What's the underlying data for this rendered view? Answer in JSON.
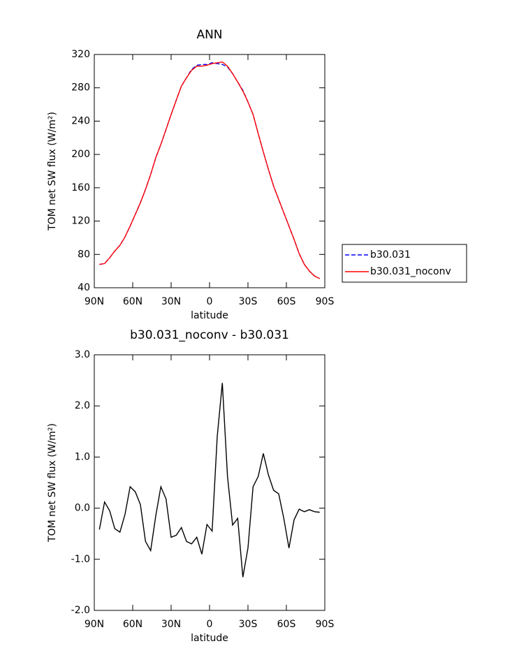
{
  "chart_data": [
    {
      "type": "line",
      "title": "ANN",
      "xlabel": "latitude",
      "ylabel": "TOM net SW flux (W/m²)",
      "x": [
        86,
        82,
        78,
        74,
        70,
        66,
        62,
        58,
        54,
        50,
        46,
        42,
        38,
        34,
        30,
        26,
        22,
        18,
        14,
        10,
        6,
        2,
        -2,
        -6,
        -10,
        -14,
        -18,
        -22,
        -26,
        -30,
        -34,
        -38,
        -42,
        -46,
        -50,
        -54,
        -58,
        -62,
        -66,
        -70,
        -74,
        -78,
        -82,
        -86
      ],
      "series": [
        {
          "name": "b30.031",
          "color": "#0000ff",
          "dash": true,
          "values": [
            68,
            69,
            76,
            84,
            91,
            101,
            114,
            128,
            142,
            158,
            176,
            196,
            212,
            230,
            248,
            265,
            282,
            292,
            302,
            307,
            308,
            308,
            310,
            309,
            308,
            305,
            297,
            287,
            277,
            263,
            248,
            225,
            203,
            182,
            162,
            146,
            130,
            114,
            98,
            81,
            68,
            60,
            54,
            51
          ]
        },
        {
          "name": "b30.031_noconv",
          "color": "#ff0000",
          "dash": false,
          "values": [
            68,
            69,
            76,
            84,
            91,
            101,
            114,
            128,
            142,
            158,
            176,
            196,
            212,
            230,
            248,
            265,
            282,
            292,
            301,
            306,
            306,
            307,
            309,
            310,
            311,
            306,
            297,
            287,
            276,
            263,
            248,
            225,
            203,
            182,
            162,
            146,
            130,
            114,
            98,
            81,
            68,
            60,
            54,
            51
          ]
        }
      ],
      "xlim": [
        90,
        -90
      ],
      "xticks": [
        {
          "value": 90,
          "label": "90N"
        },
        {
          "value": 60,
          "label": "60N"
        },
        {
          "value": 30,
          "label": "30N"
        },
        0,
        {
          "value": -30,
          "label": "30S"
        },
        {
          "value": -60,
          "label": "60S"
        },
        {
          "value": -90,
          "label": "90S"
        }
      ],
      "ylim": [
        40,
        320
      ],
      "yticks": [
        40,
        80,
        120,
        160,
        200,
        240,
        280,
        320
      ],
      "legend": "outside-right"
    },
    {
      "type": "line",
      "title": "b30.031_noconv - b30.031",
      "xlabel": "latitude",
      "ylabel": "TOM net SW flux (W/m²)",
      "x": [
        86,
        82,
        78,
        74,
        70,
        66,
        62,
        58,
        54,
        50,
        46,
        42,
        38,
        34,
        30,
        26,
        22,
        18,
        14,
        10,
        6,
        2,
        -2,
        -6,
        -10,
        -14,
        -18,
        -22,
        -26,
        -30,
        -34,
        -38,
        -42,
        -46,
        -50,
        -54,
        -58,
        -62,
        -66,
        -70,
        -74,
        -78,
        -82,
        -86
      ],
      "values": [
        -0.42,
        0.12,
        -0.05,
        -0.4,
        -0.47,
        -0.12,
        0.42,
        0.32,
        0.07,
        -0.65,
        -0.83,
        -0.15,
        0.42,
        0.18,
        -0.57,
        -0.53,
        -0.38,
        -0.65,
        -0.7,
        -0.57,
        -0.9,
        -0.32,
        -0.45,
        1.4,
        2.45,
        0.62,
        -0.33,
        -0.2,
        -1.35,
        -0.78,
        0.42,
        0.62,
        1.07,
        0.65,
        0.35,
        0.28,
        -0.2,
        -0.78,
        -0.23,
        -0.02,
        -0.07,
        -0.03,
        -0.07,
        -0.08
      ],
      "color": "#000000",
      "xlim": [
        90,
        -90
      ],
      "xticks": [
        {
          "value": 90,
          "label": "90N"
        },
        {
          "value": 60,
          "label": "60N"
        },
        {
          "value": 30,
          "label": "30N"
        },
        0,
        {
          "value": -30,
          "label": "30S"
        },
        {
          "value": -60,
          "label": "60S"
        },
        {
          "value": -90,
          "label": "90S"
        }
      ],
      "ylim": [
        -2,
        3
      ],
      "yticks": [
        {
          "value": -2,
          "label": "-2.0"
        },
        {
          "value": -1,
          "label": "-1.0"
        },
        {
          "value": 0,
          "label": "0.0"
        },
        {
          "value": 1,
          "label": "1.0"
        },
        {
          "value": 2,
          "label": "2.0"
        },
        {
          "value": 3,
          "label": "3.0"
        }
      ]
    }
  ]
}
